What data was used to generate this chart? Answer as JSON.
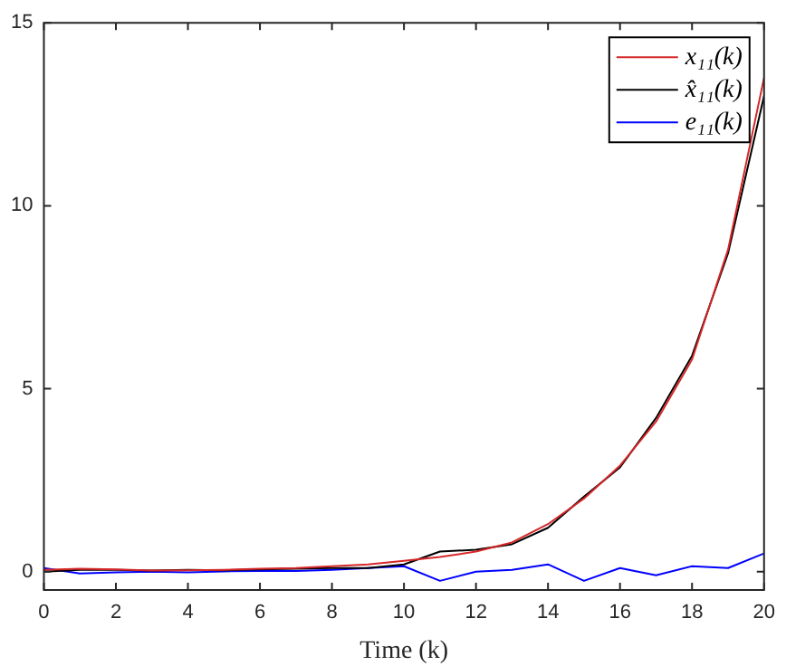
{
  "chart_data": {
    "type": "line",
    "xlabel": "Time (k)",
    "x": [
      0,
      1,
      2,
      3,
      4,
      5,
      6,
      7,
      8,
      9,
      10,
      11,
      12,
      13,
      14,
      15,
      16,
      17,
      18,
      19,
      20
    ],
    "series": [
      {
        "name": "x₁₁(k)",
        "color": "#d62728",
        "values": [
          0.05,
          0.08,
          0.06,
          0.03,
          0.04,
          0.05,
          0.08,
          0.1,
          0.15,
          0.2,
          0.3,
          0.4,
          0.55,
          0.8,
          1.3,
          2.0,
          2.9,
          4.1,
          5.8,
          8.8,
          13.5
        ]
      },
      {
        "name": "x̂₁₁(k)",
        "color": "#000000",
        "values": [
          0.0,
          0.05,
          0.05,
          0.03,
          0.05,
          0.04,
          0.06,
          0.08,
          0.1,
          0.1,
          0.2,
          0.55,
          0.6,
          0.75,
          1.2,
          2.05,
          2.85,
          4.2,
          5.9,
          8.7,
          13.0
        ]
      },
      {
        "name": "e₁₁(k)",
        "color": "#0000ff",
        "values": [
          0.1,
          -0.05,
          -0.02,
          0.0,
          -0.02,
          0.01,
          0.02,
          0.02,
          0.05,
          0.1,
          0.15,
          -0.25,
          0.0,
          0.05,
          0.2,
          -0.25,
          0.1,
          -0.1,
          0.15,
          0.1,
          0.5
        ]
      }
    ],
    "xlim": [
      0,
      20
    ],
    "xticks": [
      0,
      2,
      4,
      6,
      8,
      10,
      12,
      14,
      16,
      18,
      20
    ],
    "ylim": [
      -0.5,
      15
    ],
    "yticks": [
      0,
      5,
      10,
      15
    ],
    "grid": false,
    "legend": "top right",
    "marker": "none",
    "line_style": "solid"
  }
}
